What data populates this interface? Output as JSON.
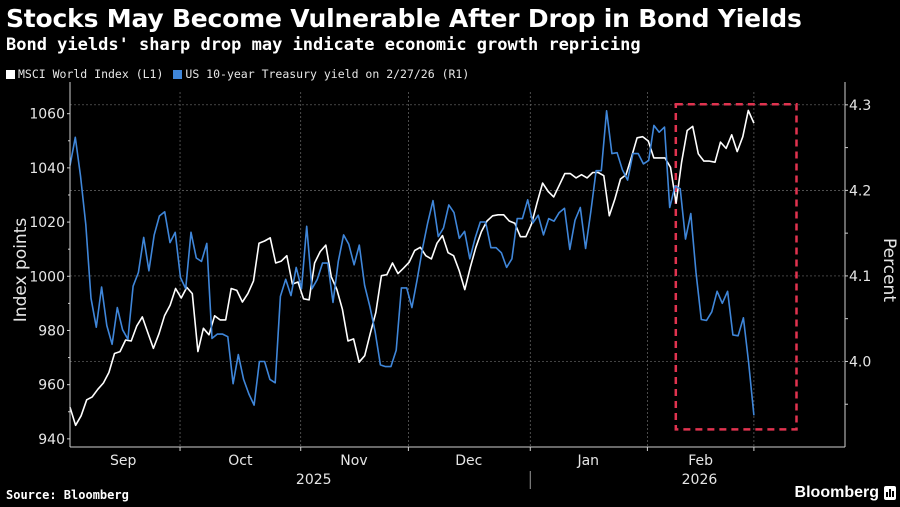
{
  "header": {
    "title": "Stocks May Become Vulnerable After Drop in Bond Yields",
    "subtitle": "Bond yields' sharp drop may indicate economic growth repricing"
  },
  "footer": {
    "source": "Source: Bloomberg",
    "brand": "Bloomberg",
    "brand_icon": "bloomberg-chart-icon"
  },
  "colors": {
    "background": "#000000",
    "msci": "#ffffff",
    "yield": "#3f86d9",
    "highlight_box": "#e0334f",
    "grid": "#6b6b6b"
  },
  "chart_data": {
    "type": "line",
    "title": "Stocks May Become Vulnerable After Drop in Bond Yields",
    "subtitle": "Bond yields' sharp drop may indicate economic growth repricing",
    "ylabel_left": "Index points",
    "ylabel_right": "Percent",
    "ylim_left": [
      937,
      1068
    ],
    "ylim_right": [
      3.9,
      4.315
    ],
    "yticks_left": [
      940,
      960,
      980,
      1000,
      1020,
      1040,
      1060
    ],
    "yticks_left_labels": [
      "940",
      "960",
      "980",
      "1000",
      "1020",
      "1040",
      "1060"
    ],
    "yticks_right": [
      4.0,
      4.1,
      4.2,
      4.3
    ],
    "yticks_right_labels": [
      "4.0",
      "4.1",
      "4.2",
      "4.3"
    ],
    "x_range_months": [
      0,
      6.55
    ],
    "x_month_boundaries": [
      0.93,
      1.95,
      2.86,
      3.89,
      4.88,
      5.78
    ],
    "x_month_labels": [
      {
        "label": "Sep",
        "at": 0.45
      },
      {
        "label": "Oct",
        "at": 1.44
      },
      {
        "label": "Nov",
        "at": 2.4
      },
      {
        "label": "Dec",
        "at": 3.37
      },
      {
        "label": "Jan",
        "at": 4.38
      },
      {
        "label": "Feb",
        "at": 5.33
      }
    ],
    "x_year_labels": [
      {
        "label": "2025",
        "at": 2.06
      },
      {
        "label": "2026",
        "at": 5.32
      }
    ],
    "x_year_boundary": 3.89,
    "series_x_span_months": [
      0,
      5.78
    ],
    "grid": true,
    "legend_position": "top-left",
    "highlight_box": {
      "x_from_months": 5.12,
      "x_to_months": 6.14,
      "y_from_left": 943.5,
      "y_to_left": 1063.5
    },
    "series": [
      {
        "name": "MSCI World Index (L1)",
        "axis": "left",
        "values": [
          951.7,
          945.0,
          948.5,
          954.4,
          955.5,
          958.3,
          960.6,
          964.5,
          971.5,
          972.2,
          976.5,
          976.1,
          981.6,
          985.0,
          979.2,
          973.4,
          978.8,
          985.4,
          989.3,
          995.5,
          992.0,
          995.9,
          993.6,
          972.2,
          980.8,
          978.4,
          985.4,
          983.9,
          983.9,
          995.5,
          994.8,
          990.5,
          993.6,
          998.3,
          1012.2,
          1013.0,
          1014.2,
          1004.9,
          1005.6,
          1007.6,
          997.1,
          997.9,
          991.7,
          991.3,
          1004.9,
          1009.1,
          1011.5,
          999.8,
          995.1,
          987.8,
          976.1,
          976.9,
          968.3,
          970.7,
          978.8,
          986.6,
          1000.2,
          1000.6,
          1004.9,
          1001.0,
          1003.0,
          1005.2,
          1009.5,
          1010.7,
          1007.6,
          1006.4,
          1012.2,
          1015.0,
          1008.7,
          1007.6,
          1002.1,
          995.1,
          1003.3,
          1010.7,
          1016.5,
          1020.4,
          1022.3,
          1022.7,
          1022.7,
          1020.4,
          1019.6,
          1014.6,
          1014.6,
          1019.2,
          1027.0,
          1034.4,
          1031.3,
          1029.3,
          1033.6,
          1037.9,
          1037.9,
          1036.3,
          1037.5,
          1036.3,
          1038.3,
          1038.3,
          1037.1,
          1022.3,
          1028.5,
          1035.9,
          1037.5,
          1044.1,
          1051.1,
          1051.5,
          1049.9,
          1043.7,
          1043.7,
          1043.7,
          1040.2,
          1027.0,
          1042.1,
          1053.8,
          1055.3,
          1045.2,
          1042.5,
          1042.5,
          1042.1,
          1049.5,
          1047.2,
          1052.2,
          1046.0,
          1051.5,
          1061.2,
          1056.5
        ]
      },
      {
        "name": "US 10-year Treasury yield on 2/27/26 (R1)",
        "axis": "right",
        "values": [
          4.229,
          4.262,
          4.217,
          4.16,
          4.074,
          4.04,
          4.087,
          4.042,
          4.02,
          4.063,
          4.037,
          4.026,
          4.088,
          4.104,
          4.145,
          4.106,
          4.148,
          4.17,
          4.175,
          4.139,
          4.151,
          4.098,
          4.085,
          4.151,
          4.121,
          4.117,
          4.138,
          4.027,
          4.032,
          4.032,
          4.029,
          3.974,
          4.008,
          3.979,
          3.962,
          3.949,
          4.0,
          4.0,
          3.979,
          3.975,
          4.076,
          4.096,
          4.077,
          4.11,
          4.085,
          4.158,
          4.085,
          4.096,
          4.115,
          4.115,
          4.069,
          4.117,
          4.148,
          4.137,
          4.113,
          4.136,
          4.089,
          4.064,
          4.035,
          3.996,
          3.994,
          3.994,
          4.013,
          4.086,
          4.086,
          4.063,
          4.096,
          4.132,
          4.162,
          4.188,
          4.146,
          4.156,
          4.183,
          4.174,
          4.144,
          4.152,
          4.12,
          4.144,
          4.163,
          4.163,
          4.133,
          4.133,
          4.127,
          4.11,
          4.12,
          4.167,
          4.167,
          4.189,
          4.162,
          4.171,
          4.148,
          4.167,
          4.164,
          4.174,
          4.179,
          4.131,
          4.165,
          4.18,
          4.132,
          4.175,
          4.223,
          4.223,
          4.293,
          4.243,
          4.244,
          4.224,
          4.212,
          4.243,
          4.243,
          4.231,
          4.235,
          4.276,
          4.268,
          4.274,
          4.18,
          4.205,
          4.202,
          4.143,
          4.173,
          4.104,
          4.049,
          4.048,
          4.058,
          4.082,
          4.068,
          4.082,
          4.031,
          4.03,
          4.051,
          3.999,
          3.937
        ]
      }
    ]
  }
}
